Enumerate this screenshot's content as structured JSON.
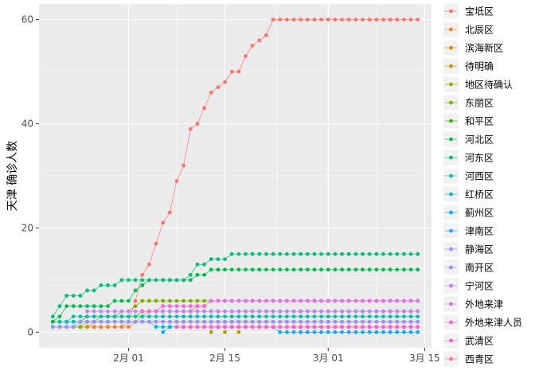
{
  "chart_data": {
    "type": "line",
    "title": "",
    "xlabel": "",
    "ylabel": "天津 确诊人数",
    "grid": true,
    "legend_position": "right",
    "x_start": "2020-01-21",
    "x_end": "2020-03-14",
    "xlim": [
      "2020-01-19",
      "2020-03-16"
    ],
    "ylim": [
      -3,
      63
    ],
    "x_ticks": [
      {
        "date": "2020-02-01",
        "label": "2月 01"
      },
      {
        "date": "2020-02-15",
        "label": "2月 15"
      },
      {
        "date": "2020-03-01",
        "label": "3月 01"
      },
      {
        "date": "2020-03-15",
        "label": "3月 15"
      }
    ],
    "y_ticks": [
      0,
      20,
      40,
      60
    ],
    "series": [
      {
        "name": "宝坻区",
        "color": "#F8766D",
        "values": [
          1,
          1,
          1,
          1,
          1,
          1,
          1,
          1,
          1,
          1,
          1,
          2,
          6,
          11,
          13,
          17,
          21,
          23,
          29,
          32,
          39,
          40,
          43,
          46,
          47,
          48,
          50,
          50,
          53,
          55,
          56,
          57,
          60,
          60,
          60,
          60,
          60,
          60,
          60,
          60,
          60,
          60,
          60,
          60,
          60,
          60,
          60,
          60,
          60,
          60,
          60,
          60,
          60,
          60
        ]
      },
      {
        "name": "北辰区",
        "color": "#EA8331",
        "values": [
          1,
          1,
          1,
          1,
          1,
          1,
          1,
          1,
          1,
          1,
          1,
          1,
          2,
          3,
          4,
          4,
          4,
          4,
          4,
          4,
          4,
          5,
          5,
          6,
          6,
          6,
          6,
          6,
          6,
          6,
          6,
          6,
          6,
          6,
          6,
          6,
          6,
          6,
          6,
          6,
          6,
          6,
          6,
          6,
          6,
          6,
          6,
          6,
          6,
          6,
          6,
          6,
          6,
          6
        ]
      },
      {
        "name": "滨海新区",
        "color": "#D89000",
        "values": [
          1,
          1,
          1,
          1,
          1,
          1,
          2,
          2,
          2,
          2,
          2,
          2,
          2,
          2,
          2,
          2,
          2,
          2,
          2,
          2,
          2,
          2,
          2,
          2,
          2,
          2,
          2,
          2,
          2,
          2,
          2,
          2,
          2,
          2,
          2,
          2,
          2,
          2,
          2,
          2,
          2,
          2,
          2,
          2,
          2,
          2,
          2,
          2,
          2,
          2,
          2,
          2,
          2,
          2
        ]
      },
      {
        "name": "待明确",
        "color": "#C09B00",
        "values": [
          null,
          null,
          null,
          null,
          null,
          null,
          null,
          null,
          null,
          null,
          null,
          null,
          null,
          null,
          null,
          null,
          null,
          null,
          null,
          null,
          null,
          null,
          null,
          null,
          null,
          null,
          null,
          0,
          null,
          null,
          null,
          null,
          null,
          null,
          null,
          null,
          null,
          null,
          null,
          null,
          null,
          null,
          null,
          null,
          null,
          null,
          null,
          null,
          null,
          null,
          null,
          null,
          null,
          null
        ]
      },
      {
        "name": "地区待确认",
        "color": "#A3A500",
        "values": [
          null,
          null,
          null,
          null,
          null,
          null,
          null,
          null,
          null,
          null,
          null,
          null,
          null,
          null,
          null,
          null,
          null,
          null,
          null,
          null,
          null,
          null,
          null,
          0,
          null,
          0,
          null,
          null,
          null,
          null,
          null,
          null,
          null,
          null,
          null,
          null,
          null,
          null,
          null,
          null,
          null,
          null,
          null,
          null,
          null,
          null,
          null,
          null,
          null,
          null,
          null,
          null,
          null,
          null
        ]
      },
      {
        "name": "东丽区",
        "color": "#7CAE00",
        "values": [
          1,
          1,
          1,
          1,
          1,
          2,
          2,
          3,
          3,
          3,
          4,
          4,
          5,
          6,
          6,
          6,
          6,
          6,
          6,
          6,
          6,
          6,
          6,
          6,
          6,
          6,
          6,
          6,
          6,
          6,
          6,
          6,
          6,
          6,
          6,
          6,
          6,
          6,
          6,
          6,
          6,
          6,
          6,
          6,
          6,
          6,
          6,
          6,
          6,
          6,
          6,
          6,
          6,
          6
        ]
      },
      {
        "name": "和平区",
        "color": "#39B600",
        "values": [
          2,
          2,
          2,
          2,
          2,
          3,
          3,
          3,
          3,
          3,
          3,
          3,
          3,
          4,
          4,
          4,
          4,
          4,
          4,
          4,
          4,
          4,
          4,
          4,
          4,
          4,
          4,
          4,
          4,
          4,
          4,
          4,
          4,
          4,
          4,
          4,
          4,
          4,
          4,
          4,
          4,
          4,
          4,
          4,
          4,
          4,
          4,
          4,
          4,
          4,
          4,
          4,
          4,
          4
        ]
      },
      {
        "name": "河北区",
        "color": "#00BB4E",
        "values": [
          2,
          3,
          5,
          5,
          5,
          5,
          5,
          5,
          5,
          6,
          6,
          6,
          8,
          9,
          10,
          10,
          10,
          10,
          10,
          10,
          10,
          11,
          11,
          12,
          12,
          12,
          12,
          12,
          12,
          12,
          12,
          12,
          12,
          12,
          12,
          12,
          12,
          12,
          12,
          12,
          12,
          12,
          12,
          12,
          12,
          12,
          12,
          12,
          12,
          12,
          12,
          12,
          12,
          12
        ]
      },
      {
        "name": "河东区",
        "color": "#00BF7D",
        "values": [
          3,
          5,
          7,
          7,
          7,
          8,
          8,
          9,
          9,
          9,
          10,
          10,
          10,
          10,
          10,
          10,
          10,
          10,
          10,
          10,
          11,
          13,
          13,
          14,
          14,
          14,
          15,
          15,
          15,
          15,
          15,
          15,
          15,
          15,
          15,
          15,
          15,
          15,
          15,
          15,
          15,
          15,
          15,
          15,
          15,
          15,
          15,
          15,
          15,
          15,
          15,
          15,
          15,
          15
        ]
      },
      {
        "name": "河西区",
        "color": "#00C0AF",
        "values": [
          null,
          2,
          2,
          3,
          3,
          3,
          3,
          3,
          3,
          3,
          3,
          3,
          3,
          3,
          3,
          3,
          3,
          3,
          3,
          3,
          3,
          3,
          3,
          3,
          3,
          3,
          3,
          3,
          3,
          3,
          3,
          3,
          3,
          3,
          3,
          3,
          3,
          3,
          3,
          3,
          3,
          3,
          3,
          3,
          3,
          3,
          3,
          3,
          3,
          3,
          3,
          3,
          3,
          3
        ]
      },
      {
        "name": "红桥区",
        "color": "#00BCD8",
        "values": [
          null,
          null,
          2,
          2,
          2,
          2,
          2,
          2,
          2,
          2,
          2,
          2,
          2,
          2,
          2,
          1,
          1,
          1,
          1,
          1,
          1,
          1,
          1,
          1,
          1,
          1,
          1,
          1,
          1,
          1,
          1,
          1,
          1,
          1,
          1,
          1,
          1,
          1,
          1,
          1,
          1,
          1,
          1,
          1,
          1,
          1,
          1,
          1,
          1,
          1,
          1,
          1,
          1,
          1
        ]
      },
      {
        "name": "蓟州区",
        "color": "#00B0F6",
        "values": [
          null,
          null,
          null,
          null,
          null,
          null,
          null,
          null,
          null,
          null,
          null,
          null,
          null,
          null,
          null,
          null,
          0,
          1,
          1,
          1,
          1,
          1,
          1,
          1,
          1,
          1,
          1,
          1,
          1,
          1,
          1,
          1,
          1,
          0,
          0,
          0,
          0,
          0,
          0,
          0,
          0,
          0,
          0,
          0,
          0,
          0,
          0,
          0,
          0,
          0,
          0,
          0,
          0,
          0
        ]
      },
      {
        "name": "津南区",
        "color": "#35A2FF",
        "values": [
          null,
          null,
          null,
          null,
          null,
          null,
          null,
          null,
          null,
          null,
          null,
          null,
          null,
          null,
          null,
          null,
          null,
          null,
          null,
          null,
          null,
          null,
          null,
          1,
          1,
          1,
          1,
          1,
          1,
          1,
          1,
          1,
          1,
          1,
          1,
          1,
          1,
          1,
          1,
          1,
          1,
          1,
          1,
          1,
          1,
          1,
          1,
          1,
          1,
          1,
          1,
          1,
          1,
          1
        ]
      },
      {
        "name": "静海区",
        "color": "#9590FF",
        "values": [
          null,
          null,
          null,
          null,
          null,
          null,
          null,
          null,
          null,
          null,
          null,
          null,
          null,
          null,
          null,
          null,
          null,
          null,
          null,
          null,
          null,
          null,
          null,
          null,
          null,
          null,
          null,
          null,
          null,
          null,
          null,
          null,
          null,
          null,
          null,
          null,
          null,
          null,
          null,
          null,
          null,
          null,
          null,
          null,
          null,
          null,
          null,
          null,
          null,
          null,
          null,
          null,
          null,
          null
        ]
      },
      {
        "name": "南开区",
        "color": "#9590FF",
        "values": [
          1,
          1,
          1,
          1,
          2,
          2,
          2,
          2,
          2,
          2,
          2,
          2,
          2,
          2,
          2,
          2,
          2,
          2,
          2,
          2,
          2,
          2,
          2,
          2,
          2,
          2,
          2,
          2,
          2,
          2,
          2,
          2,
          2,
          2,
          2,
          2,
          2,
          2,
          2,
          2,
          2,
          2,
          2,
          2,
          2,
          2,
          2,
          2,
          2,
          2,
          2,
          2,
          2,
          2
        ]
      },
      {
        "name": "宁河区",
        "color": "#C77CFF",
        "values": [
          null,
          null,
          null,
          null,
          null,
          4,
          4,
          4,
          4,
          4,
          4,
          4,
          4,
          4,
          4,
          4,
          4,
          4,
          4,
          4,
          4,
          4,
          4,
          4,
          4,
          4,
          4,
          4,
          4,
          4,
          4,
          4,
          4,
          4,
          4,
          4,
          4,
          4,
          4,
          4,
          4,
          4,
          4,
          4,
          4,
          4,
          4,
          4,
          4,
          4,
          4,
          4,
          4,
          4
        ]
      },
      {
        "name": "外地来津",
        "color": "#E76BF3",
        "values": [
          null,
          null,
          null,
          null,
          null,
          null,
          null,
          null,
          null,
          null,
          null,
          null,
          null,
          null,
          null,
          null,
          null,
          null,
          null,
          null,
          null,
          null,
          null,
          6,
          6,
          6,
          6,
          6,
          6,
          6,
          6,
          6,
          6,
          6,
          6,
          6,
          6,
          6,
          6,
          6,
          6,
          6,
          6,
          6,
          6,
          6,
          6,
          6,
          6,
          6,
          6,
          6,
          6,
          6
        ]
      },
      {
        "name": "外地来津人员",
        "color": "#FA62DB",
        "values": [
          null,
          null,
          null,
          null,
          null,
          null,
          null,
          null,
          null,
          null,
          null,
          null,
          null,
          4,
          4,
          4,
          5,
          5,
          5,
          5,
          5,
          5,
          5,
          null,
          null,
          null,
          null,
          null,
          null,
          null,
          null,
          null,
          null,
          null,
          null,
          null,
          null,
          null,
          null,
          null,
          null,
          null,
          null,
          null,
          null,
          null,
          null,
          null,
          null,
          null,
          null,
          null,
          null,
          null
        ]
      },
      {
        "name": "武清区",
        "color": "#FF62BC",
        "values": [
          null,
          null,
          null,
          null,
          null,
          null,
          null,
          null,
          null,
          null,
          null,
          null,
          null,
          null,
          null,
          null,
          null,
          null,
          1,
          1,
          1,
          1,
          1,
          1,
          1,
          1,
          1,
          1,
          1,
          1,
          1,
          1,
          1,
          1,
          1,
          1,
          1,
          1,
          1,
          1,
          1,
          1,
          1,
          1,
          1,
          1,
          1,
          1,
          1,
          1,
          1,
          1,
          1,
          1
        ]
      },
      {
        "name": "西青区",
        "color": "#FF6C91",
        "values": [
          null,
          null,
          null,
          null,
          null,
          null,
          null,
          null,
          null,
          null,
          null,
          null,
          null,
          null,
          null,
          null,
          null,
          null,
          null,
          null,
          null,
          null,
          null,
          null,
          null,
          null,
          null,
          null,
          null,
          null,
          null,
          null,
          null,
          null,
          null,
          null,
          null,
          null,
          null,
          null,
          null,
          null,
          null,
          null,
          null,
          null,
          null,
          null,
          null,
          null,
          null,
          null,
          null,
          null
        ]
      }
    ]
  }
}
